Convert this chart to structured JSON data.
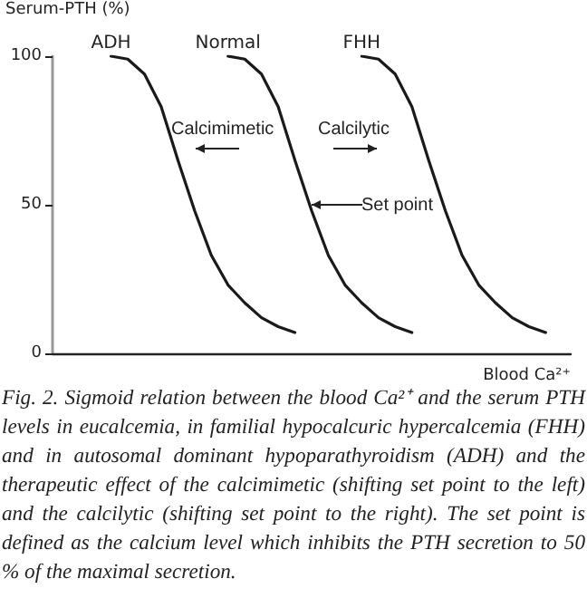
{
  "chart_data": {
    "type": "line",
    "ylabel": "Serum-PTH (%)",
    "xlabel": "Blood Ca²⁺",
    "categories": [
      null,
      null,
      null,
      null,
      null,
      null,
      null,
      null,
      null,
      null,
      null,
      null,
      null,
      null,
      null,
      null,
      null,
      null,
      null,
      null,
      null,
      null,
      null,
      null,
      null,
      null,
      null,
      null,
      null,
      null,
      null
    ],
    "series": [
      {
        "name": "ADH",
        "color": "#1a1a1a",
        "values": [
          null,
          null,
          null,
          100,
          99,
          94,
          83,
          65,
          48,
          33,
          23,
          17,
          12,
          9,
          7,
          null,
          null,
          null,
          null,
          null,
          null,
          null,
          null,
          null,
          null,
          null,
          null,
          null,
          null,
          null,
          null
        ]
      },
      {
        "name": "Normal",
        "color": "#1a1a1a",
        "values": [
          null,
          null,
          null,
          null,
          null,
          null,
          null,
          null,
          null,
          null,
          100,
          99,
          94,
          83,
          65,
          48,
          33,
          23,
          17,
          12,
          9,
          7,
          null,
          null,
          null,
          null,
          null,
          null,
          null,
          null,
          null
        ]
      },
      {
        "name": "FHH",
        "color": "#1a1a1a",
        "values": [
          null,
          null,
          null,
          null,
          null,
          null,
          null,
          null,
          null,
          null,
          null,
          null,
          null,
          null,
          null,
          null,
          null,
          null,
          100,
          99,
          94,
          83,
          65,
          48,
          33,
          23,
          17,
          12,
          9,
          7,
          null
        ]
      }
    ],
    "ylim": [
      0,
      100
    ],
    "yticks": [
      0,
      50,
      100
    ],
    "grid": false,
    "legend": false,
    "marker": "none",
    "line_style": "solid",
    "annotations": [
      "Calcimimetic",
      "Calcilytic",
      "Set point",
      "Fig. 2. Sigmoid relation between the blood Ca²⁺ and the serum PTH levels in eucalcemia, in familial hypocalcuric hypercalcemia (FHH) and in autosomal dominant hypoparathyroidism (ADH) and the therapeutic effect of the calcimimetic (shifting set point to the left) and the calcilytic (shifting set point to the right). The set point is defined as the calcium level which inhibits the PTH secretion to 50 % of the maximal secretion."
    ]
  }
}
